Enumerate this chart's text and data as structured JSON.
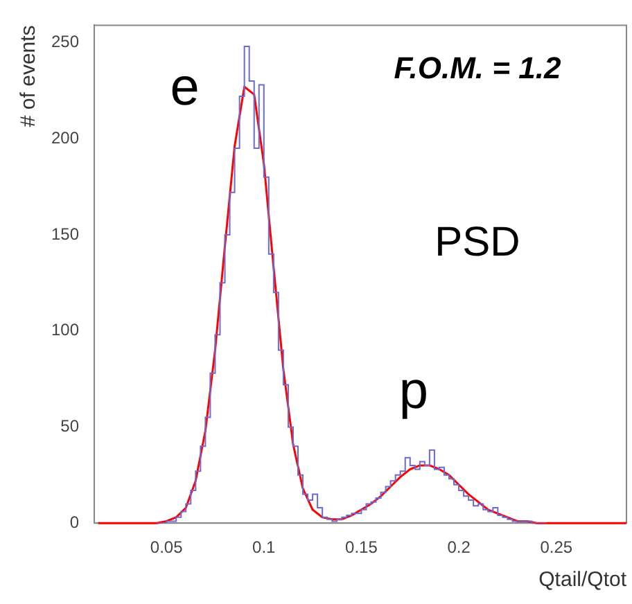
{
  "chart_data": {
    "type": "histogram",
    "xlabel": "Qtail/Qtot",
    "ylabel": "# of events",
    "xlim": [
      0.013,
      0.286
    ],
    "ylim": [
      0,
      259
    ],
    "xticks": [
      0.05,
      0.1,
      0.15,
      0.2,
      0.25
    ],
    "yticks": [
      0,
      50,
      100,
      150,
      200,
      250
    ],
    "grid": false,
    "legend": false,
    "marker": "none",
    "annotations": [
      "e",
      "F.O.M. = 1.2",
      "PSD",
      "p"
    ],
    "series": [
      {
        "color": "#6a6ad0",
        "bins": [
          0.045,
          0.0475,
          0.05,
          0.0525,
          0.055,
          0.0575,
          0.06,
          0.0625,
          0.065,
          0.0675,
          0.07,
          0.0725,
          0.075,
          0.0775,
          0.08,
          0.0825,
          0.085,
          0.0875,
          0.09,
          0.0925,
          0.095,
          0.0975,
          0.1,
          0.1025,
          0.105,
          0.1075,
          0.11,
          0.1125,
          0.115,
          0.1175,
          0.12,
          0.1225,
          0.125,
          0.1275,
          0.13,
          0.1325,
          0.135,
          0.1375,
          0.14,
          0.1425,
          0.145,
          0.1475,
          0.15,
          0.1525,
          0.155,
          0.1575,
          0.16,
          0.1625,
          0.165,
          0.1675,
          0.17,
          0.1725,
          0.175,
          0.1775,
          0.18,
          0.1825,
          0.185,
          0.1875,
          0.19,
          0.1925,
          0.195,
          0.1975,
          0.2,
          0.2025,
          0.205,
          0.2075,
          0.21,
          0.2125,
          0.215,
          0.2175,
          0.22,
          0.2225,
          0.225,
          0.2275,
          0.23,
          0.2325,
          0.235,
          0.2375,
          0.24,
          0.2425,
          0.245
        ],
        "values": [
          0,
          0,
          1,
          1,
          3,
          6,
          10,
          17,
          27,
          40,
          55,
          78,
          98,
          125,
          150,
          172,
          195,
          222,
          248,
          230,
          195,
          228,
          180,
          140,
          120,
          90,
          72,
          50,
          40,
          25,
          15,
          12,
          15,
          8,
          3,
          2,
          1,
          2,
          3,
          4,
          5,
          5,
          7,
          10,
          11,
          13,
          16,
          19,
          22,
          25,
          27,
          34,
          30,
          28,
          32,
          30,
          38,
          28,
          29,
          25,
          23,
          20,
          17,
          14,
          12,
          9,
          10,
          7,
          6,
          8,
          4,
          3,
          2,
          1,
          1,
          1,
          1,
          0,
          0,
          0
        ]
      },
      {
        "type": "line",
        "color": "#ff0000",
        "x": [
          0.015,
          0.045,
          0.05,
          0.055,
          0.06,
          0.065,
          0.07,
          0.075,
          0.08,
          0.085,
          0.09,
          0.095,
          0.1,
          0.105,
          0.11,
          0.115,
          0.12,
          0.125,
          0.13,
          0.135,
          0.14,
          0.145,
          0.15,
          0.155,
          0.16,
          0.165,
          0.17,
          0.175,
          0.18,
          0.185,
          0.19,
          0.195,
          0.2,
          0.205,
          0.21,
          0.215,
          0.22,
          0.225,
          0.23,
          0.235,
          0.24,
          0.25,
          0.286
        ],
        "values": [
          0,
          0,
          1,
          3,
          8,
          22,
          48,
          90,
          144,
          196,
          227,
          223,
          187,
          133,
          80,
          41,
          18,
          7,
          3,
          2,
          2,
          4,
          7,
          10,
          14,
          19,
          24,
          28,
          30,
          30,
          28,
          25,
          20,
          15,
          11,
          7,
          5,
          3,
          1,
          1,
          0,
          0,
          0
        ]
      }
    ]
  }
}
